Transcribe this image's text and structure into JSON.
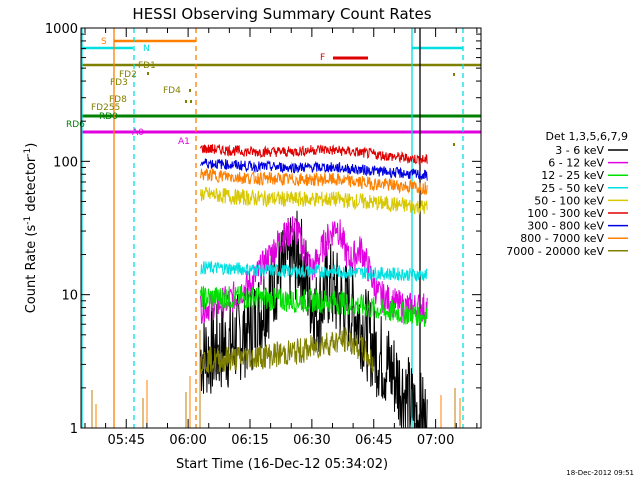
{
  "chart_data": {
    "type": "line",
    "title": "HESSI Observing Summary Count Rates",
    "xlabel": "Start Time (16-Dec-12 05:34:02)",
    "ylabel_main": "Count Rate (s",
    "ylabel_sup1": "-1",
    "ylabel_mid": " detector",
    "ylabel_sup2": "-1",
    "ylabel_end": ")",
    "y_scale": "log",
    "ylim": [
      1,
      1000
    ],
    "xlim": [
      "05:34:02",
      "07:11:00"
    ],
    "x_ticks": [
      "05:45",
      "06:00",
      "06:15",
      "06:30",
      "06:45",
      "07:00"
    ],
    "y_ticks": [
      "1",
      "10",
      "100",
      "1000"
    ],
    "legend_title": "Det 1,3,5,6,7,9",
    "legend": [
      {
        "label": "3 - 6 keV",
        "color": "#000000"
      },
      {
        "label": "6 - 12 keV",
        "color": "#e000e0"
      },
      {
        "label": "12 - 25 keV",
        "color": "#00e000"
      },
      {
        "label": "25 - 50 keV",
        "color": "#00e0e0"
      },
      {
        "label": "50 - 100 keV",
        "color": "#d8c800"
      },
      {
        "label": "100 - 300 keV",
        "color": "#e00000"
      },
      {
        "label": "300 - 800 keV",
        "color": "#0000e0"
      },
      {
        "label": "800 - 7000 keV",
        "color": "#ff8000"
      },
      {
        "label": "7000 - 20000 keV",
        "color": "#808000"
      }
    ],
    "flags": [
      {
        "label": "S",
        "color": "#ff8000"
      },
      {
        "label": "N",
        "color": "#00e0e0"
      },
      {
        "label": "F",
        "color": "#e00000"
      },
      {
        "label": "FD1",
        "color": "#808000"
      },
      {
        "label": "FD2",
        "color": "#808000"
      },
      {
        "label": "FD3",
        "color": "#808000"
      },
      {
        "label": "FD4",
        "color": "#808000"
      },
      {
        "label": "FD8",
        "color": "#808000"
      },
      {
        "label": "FD255",
        "color": "#808000"
      },
      {
        "label": "RD0",
        "color": "#008000"
      },
      {
        "label": "RD6",
        "color": "#008000"
      },
      {
        "label": "A0",
        "color": "#e000e0"
      },
      {
        "label": "A1",
        "color": "#e000e0"
      }
    ],
    "series": [
      {
        "name": "3 - 6 keV",
        "color": "#000000",
        "x": [
          "06:03",
          "06:10",
          "06:16",
          "06:22",
          "06:27",
          "06:31",
          "06:34",
          "06:37",
          "06:41",
          "06:45",
          "06:50",
          "06:55",
          "06:58"
        ],
        "values": [
          3.5,
          4.2,
          6,
          15,
          20,
          7,
          12,
          9,
          7,
          4,
          2.5,
          1.3,
          1.1
        ]
      },
      {
        "name": "6 - 12 keV",
        "color": "#e000e0",
        "x": [
          "06:03",
          "06:10",
          "06:16",
          "06:22",
          "06:26",
          "06:30",
          "06:33",
          "06:36",
          "06:39",
          "06:42",
          "06:46",
          "06:52",
          "06:58"
        ],
        "values": [
          8,
          9,
          13,
          25,
          32,
          15,
          24,
          34,
          18,
          22,
          10,
          8,
          8
        ]
      },
      {
        "name": "12 - 25 keV",
        "color": "#00e000",
        "x": [
          "06:03",
          "06:15",
          "06:25",
          "06:33",
          "06:40",
          "06:48",
          "06:58"
        ],
        "values": [
          9.5,
          9.5,
          9,
          9,
          8.5,
          7.5,
          7
        ]
      },
      {
        "name": "25 - 50 keV",
        "color": "#00e0e0",
        "x": [
          "06:03",
          "06:15",
          "06:25",
          "06:35",
          "06:45",
          "06:58"
        ],
        "values": [
          16,
          15.5,
          15,
          15,
          14.5,
          14
        ]
      },
      {
        "name": "50 - 100 keV",
        "color": "#d8c800",
        "x": [
          "06:03",
          "06:15",
          "06:25",
          "06:35",
          "06:45",
          "06:58"
        ],
        "values": [
          57,
          53,
          52,
          52,
          49,
          45
        ]
      },
      {
        "name": "100 - 300 keV",
        "color": "#e00000",
        "x": [
          "06:03",
          "06:15",
          "06:25",
          "06:32",
          "06:40",
          "06:50",
          "06:58"
        ],
        "values": [
          125,
          118,
          118,
          123,
          118,
          108,
          102
        ]
      },
      {
        "name": "300 - 800 keV",
        "color": "#0000e0",
        "x": [
          "06:03",
          "06:15",
          "06:25",
          "06:35",
          "06:45",
          "06:58"
        ],
        "values": [
          98,
          92,
          90,
          90,
          85,
          78
        ]
      },
      {
        "name": "800 - 7000 keV",
        "color": "#ff8000",
        "x": [
          "06:03",
          "06:15",
          "06:25",
          "06:35",
          "06:45",
          "06:58"
        ],
        "values": [
          80,
          75,
          73,
          73,
          68,
          63
        ]
      },
      {
        "name": "7000 - 20000 keV",
        "color": "#808000",
        "x": [
          "06:03",
          "06:10",
          "06:20",
          "06:28",
          "06:33",
          "06:38",
          "06:42",
          "06:45"
        ],
        "values": [
          3.2,
          3.3,
          3.5,
          3.8,
          4.3,
          4.6,
          4.0,
          3.0
        ]
      }
    ]
  },
  "footer_timestamp": "18-Dec-2012 09:51"
}
